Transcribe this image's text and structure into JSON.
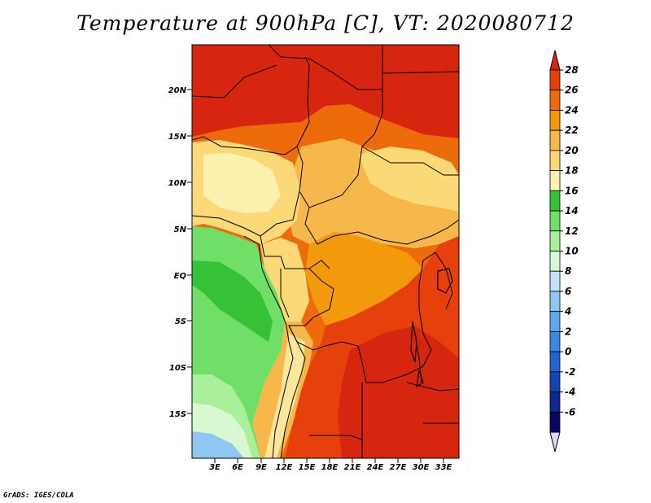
{
  "title": "Temperature at 900hPa [C], VT: 2020080712",
  "credit": "GrADS: IGES/COLA",
  "map": {
    "lat_labels": [
      "20N",
      "15N",
      "10N",
      "5N",
      "EQ",
      "5S",
      "10S",
      "15S"
    ],
    "lon_labels": [
      "3E",
      "6E",
      "9E",
      "12E",
      "15E",
      "18E",
      "21E",
      "24E",
      "27E",
      "30E",
      "33E"
    ]
  },
  "colorbar": {
    "levels": [
      "28",
      "26",
      "24",
      "22",
      "20",
      "18",
      "16",
      "14",
      "12",
      "10",
      "8",
      "6",
      "4",
      "2",
      "0",
      "-2",
      "-4",
      "-6"
    ],
    "colors": [
      "#d7260f",
      "#e6410c",
      "#ee6b0c",
      "#f39a0c",
      "#f6b84a",
      "#fcd977",
      "#fdf1b0",
      "#36c237",
      "#70df68",
      "#aaf09a",
      "#d8f8d2",
      "#c5e3f8",
      "#8fc7f1",
      "#5ea9ee",
      "#3a89e4",
      "#2264d3",
      "#1643b3",
      "#0d288e",
      "#09065c",
      "#dad8f4"
    ]
  },
  "colors": {
    "hot": "#d7260f",
    "orange": "#ee6b0c",
    "amber": "#f39a0c",
    "light_orange": "#f6b84a",
    "pale_yellow": "#fcd977",
    "cream": "#fdf1b0",
    "green": "#36c237",
    "light_green": "#70df68",
    "pale_green": "#aaf09a",
    "ice": "#d8f8d2",
    "sky": "#8fc7f1"
  }
}
